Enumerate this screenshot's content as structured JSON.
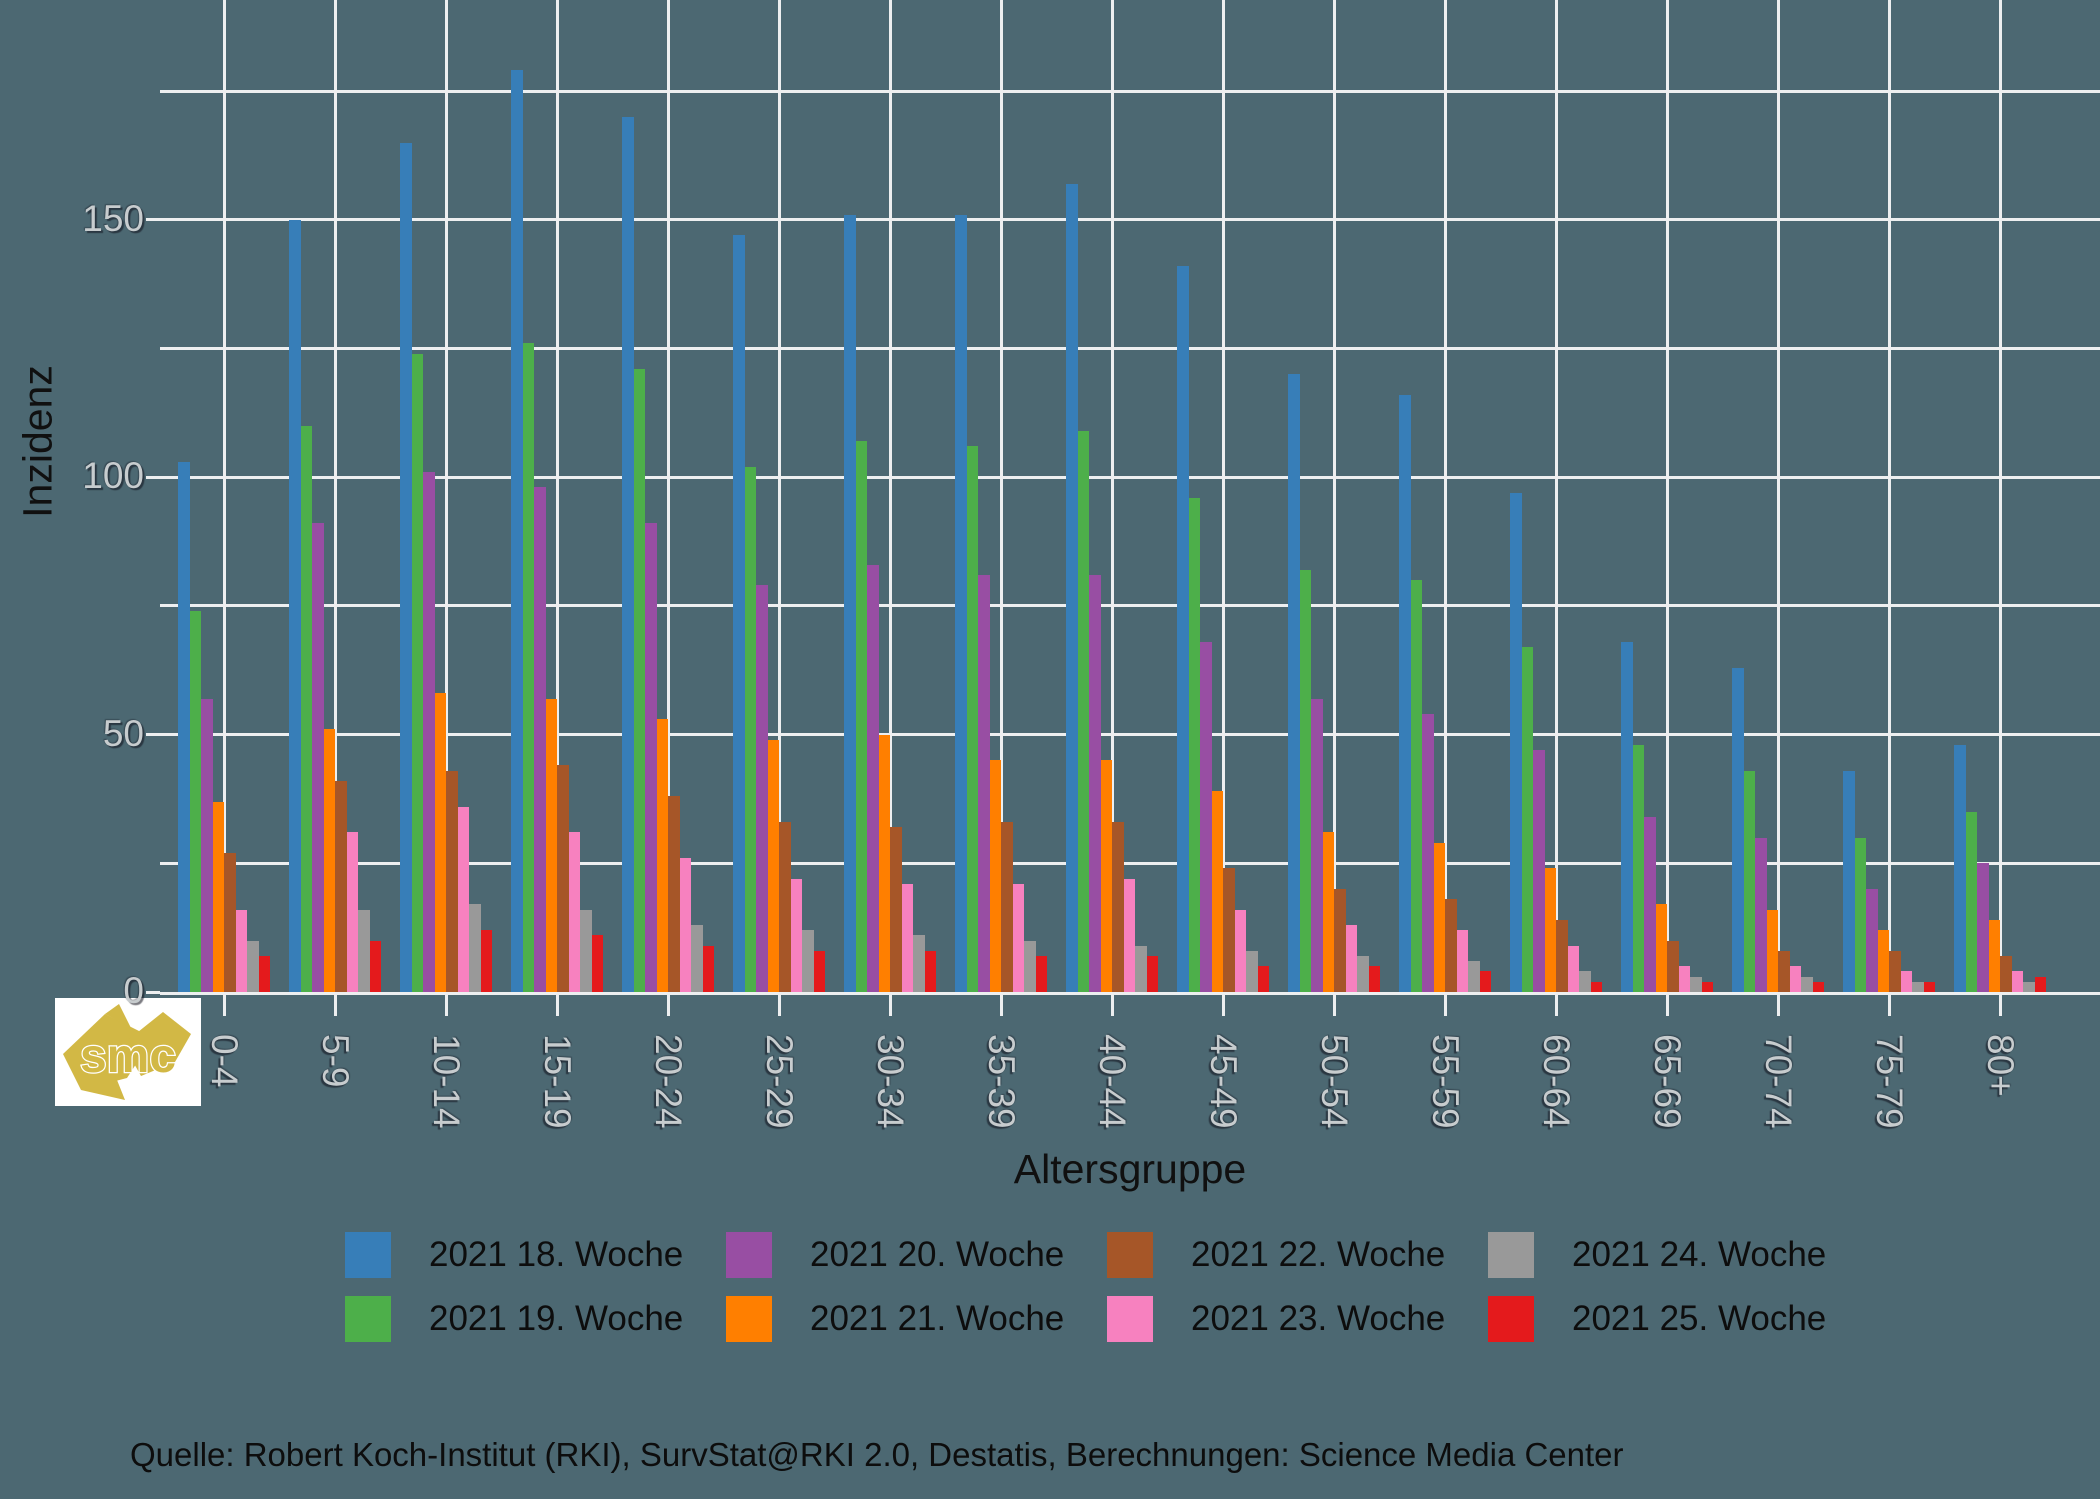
{
  "colors": {
    "background": "#4c6872",
    "gridline": "#edeff0",
    "axis_tick_text": "#c7ccce",
    "title_text": "#101010",
    "legend_text": "#0d0d0d",
    "source_text": "#0d0d0d"
  },
  "chart_data": {
    "type": "bar",
    "title": "",
    "xlabel": "Altersgruppe",
    "ylabel": "Inzidenz",
    "ylim": [
      0,
      175
    ],
    "gridline_step": 25,
    "grid": "on",
    "legend_position": "bottom",
    "yticks_labeled": [
      0,
      50,
      100,
      150
    ],
    "categories": [
      "0-4",
      "5-9",
      "10-14",
      "15-19",
      "20-24",
      "25-29",
      "30-34",
      "35-39",
      "40-44",
      "45-49",
      "50-54",
      "55-59",
      "60-64",
      "65-69",
      "70-74",
      "75-79",
      "80+"
    ],
    "series": [
      {
        "name": "2021 18. Woche",
        "color": "#377eb8",
        "values": [
          103,
          150,
          165,
          179,
          170,
          147,
          151,
          151,
          157,
          141,
          120,
          116,
          97,
          68,
          63,
          43,
          48
        ]
      },
      {
        "name": "2021 19. Woche",
        "color": "#4daf4a",
        "values": [
          74,
          110,
          124,
          126,
          121,
          102,
          107,
          106,
          109,
          96,
          82,
          80,
          67,
          48,
          43,
          30,
          35
        ]
      },
      {
        "name": "2021 20. Woche",
        "color": "#984ea3",
        "values": [
          57,
          91,
          101,
          98,
          91,
          79,
          83,
          81,
          81,
          68,
          57,
          54,
          47,
          34,
          30,
          20,
          25
        ]
      },
      {
        "name": "2021 21. Woche",
        "color": "#ff7f00",
        "values": [
          37,
          51,
          58,
          57,
          53,
          49,
          50,
          45,
          45,
          39,
          31,
          29,
          24,
          17,
          16,
          12,
          14
        ]
      },
      {
        "name": "2021 22. Woche",
        "color": "#a65628",
        "values": [
          27,
          41,
          43,
          44,
          38,
          33,
          32,
          33,
          33,
          24,
          20,
          18,
          14,
          10,
          8,
          8,
          7
        ]
      },
      {
        "name": "2021 23. Woche",
        "color": "#f781bf",
        "values": [
          16,
          31,
          36,
          31,
          26,
          22,
          21,
          21,
          22,
          16,
          13,
          12,
          9,
          5,
          5,
          4,
          4
        ]
      },
      {
        "name": "2021 24. Woche",
        "color": "#999999",
        "values": [
          10,
          16,
          17,
          16,
          13,
          12,
          11,
          10,
          9,
          8,
          7,
          6,
          4,
          3,
          3,
          2,
          2
        ]
      },
      {
        "name": "2021 25. Woche",
        "color": "#e41a1c",
        "values": [
          7,
          10,
          12,
          11,
          9,
          8,
          8,
          7,
          7,
          5,
          5,
          4,
          2,
          2,
          2,
          2,
          3
        ]
      }
    ]
  },
  "source": {
    "text": "Quelle: Robert Koch-Institut (RKI), SurvStat@RKI 2.0, Destatis, Berechnungen: Science Media Center"
  },
  "logo": {
    "text": "smc",
    "background": "#ffffff",
    "accent": "#d2b845"
  }
}
